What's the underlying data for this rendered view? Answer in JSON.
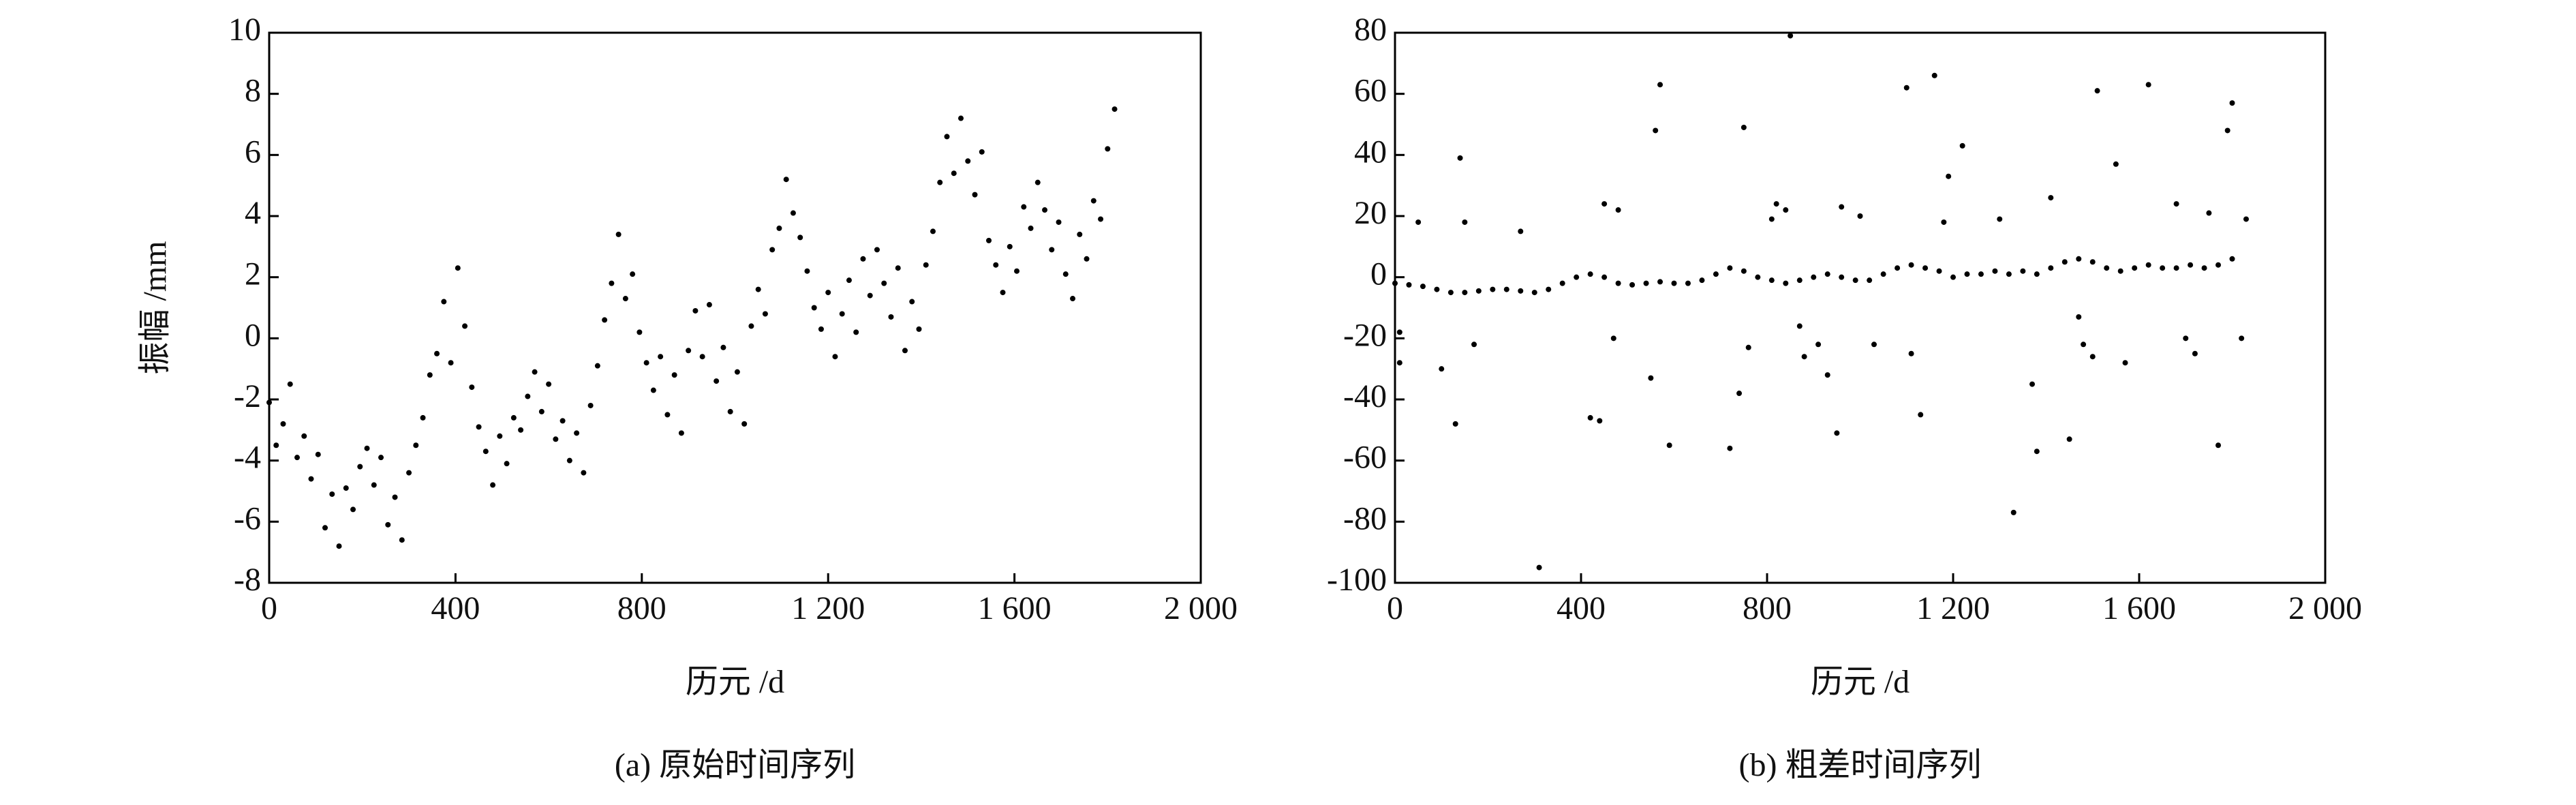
{
  "chart_data": [
    {
      "type": "scatter",
      "caption": "(a) 原始时间序列",
      "xlabel": "历元 /d",
      "ylabel": "振幅 /mm",
      "xlim": [
        0,
        2000
      ],
      "ylim": [
        -8,
        10
      ],
      "xticks": [
        0,
        400,
        800,
        {
          "value": 1200,
          "label": "1 200"
        },
        {
          "value": 1600,
          "label": "1 600"
        },
        {
          "value": 2000,
          "label": "2 000"
        }
      ],
      "yticks": [
        -8,
        -6,
        -4,
        -2,
        0,
        2,
        4,
        6,
        8,
        10
      ],
      "series": [
        {
          "color": "#000000",
          "x": [
            0,
            15,
            30,
            45,
            60,
            75,
            90,
            105,
            120,
            135,
            150,
            165,
            180,
            195,
            210,
            225,
            240,
            255,
            270,
            285,
            300,
            315,
            330,
            345,
            360,
            375,
            390,
            405,
            420,
            435,
            450,
            465,
            480,
            495,
            510,
            525,
            540,
            555,
            570,
            585,
            600,
            615,
            630,
            645,
            660,
            675,
            690,
            705,
            720,
            735,
            750,
            765,
            780,
            795,
            810,
            825,
            840,
            855,
            870,
            885,
            900,
            915,
            930,
            945,
            960,
            975,
            990,
            1005,
            1020,
            1035,
            1050,
            1065,
            1080,
            1095,
            1110,
            1125,
            1140,
            1155,
            1170,
            1185,
            1200,
            1215,
            1230,
            1245,
            1260,
            1275,
            1290,
            1305,
            1320,
            1335,
            1350,
            1365,
            1380,
            1395,
            1410,
            1425,
            1440,
            1455,
            1470,
            1485,
            1500,
            1515,
            1530,
            1545,
            1560,
            1575,
            1590,
            1605,
            1620,
            1635,
            1650,
            1665,
            1680,
            1695,
            1710,
            1725,
            1740,
            1755,
            1770,
            1785,
            1800,
            1815
          ],
          "values": [
            -2.1,
            -3.5,
            -2.8,
            -1.5,
            -3.9,
            -3.2,
            -4.6,
            -3.8,
            -6.2,
            -5.1,
            -6.8,
            -4.9,
            -5.6,
            -4.2,
            -3.6,
            -4.8,
            -3.9,
            -6.1,
            -5.2,
            -6.6,
            -4.4,
            -3.5,
            -2.6,
            -1.2,
            -0.5,
            1.2,
            -0.8,
            2.3,
            0.4,
            -1.6,
            -2.9,
            -3.7,
            -4.8,
            -3.2,
            -4.1,
            -2.6,
            -3.0,
            -1.9,
            -1.1,
            -2.4,
            -1.5,
            -3.3,
            -2.7,
            -4.0,
            -3.1,
            -4.4,
            -2.2,
            -0.9,
            0.6,
            1.8,
            3.4,
            1.3,
            2.1,
            0.2,
            -0.8,
            -1.7,
            -0.6,
            -2.5,
            -1.2,
            -3.1,
            -0.4,
            0.9,
            -0.6,
            1.1,
            -1.4,
            -0.3,
            -2.4,
            -1.1,
            -2.8,
            0.4,
            1.6,
            0.8,
            2.9,
            3.6,
            5.2,
            4.1,
            3.3,
            2.2,
            1.0,
            0.3,
            1.5,
            -0.6,
            0.8,
            1.9,
            0.2,
            2.6,
            1.4,
            2.9,
            1.8,
            0.7,
            2.3,
            -0.4,
            1.2,
            0.3,
            2.4,
            3.5,
            5.1,
            6.6,
            5.4,
            7.2,
            5.8,
            4.7,
            6.1,
            3.2,
            2.4,
            1.5,
            3.0,
            2.2,
            4.3,
            3.6,
            5.1,
            4.2,
            2.9,
            3.8,
            2.1,
            1.3,
            3.4,
            2.6,
            4.5,
            3.9,
            6.2,
            7.5
          ]
        }
      ]
    },
    {
      "type": "scatter",
      "caption": "(b) 粗差时间序列",
      "xlabel": "历元 /d",
      "xlim": [
        0,
        2000
      ],
      "ylim": [
        -100,
        80
      ],
      "xticks": [
        0,
        400,
        800,
        {
          "value": 1200,
          "label": "1 200"
        },
        {
          "value": 1600,
          "label": "1 600"
        },
        {
          "value": 2000,
          "label": "2 000"
        }
      ],
      "yticks": [
        -100,
        -80,
        -60,
        -40,
        -20,
        0,
        20,
        40,
        60,
        80
      ],
      "series": [
        {
          "color": "#000000",
          "x": [
            0,
            30,
            60,
            90,
            120,
            150,
            180,
            210,
            240,
            270,
            300,
            330,
            360,
            390,
            420,
            450,
            480,
            510,
            540,
            570,
            600,
            630,
            660,
            690,
            720,
            750,
            780,
            810,
            840,
            870,
            900,
            930,
            960,
            990,
            1020,
            1050,
            1080,
            1110,
            1140,
            1170,
            1200,
            1230,
            1260,
            1290,
            1320,
            1350,
            1380,
            1410,
            1440,
            1470,
            1500,
            1530,
            1560,
            1590,
            1620,
            1650,
            1680,
            1710,
            1740,
            1770,
            1800,
            10,
            10,
            50,
            100,
            130,
            140,
            150,
            170,
            270,
            310,
            420,
            440,
            450,
            470,
            480,
            550,
            560,
            570,
            590,
            720,
            740,
            750,
            760,
            810,
            820,
            840,
            850,
            870,
            880,
            910,
            930,
            950,
            960,
            1000,
            1030,
            1100,
            1110,
            1130,
            1160,
            1180,
            1190,
            1220,
            1300,
            1330,
            1370,
            1380,
            1410,
            1450,
            1470,
            1480,
            1500,
            1510,
            1550,
            1570,
            1620,
            1680,
            1700,
            1720,
            1750,
            1770,
            1790,
            1800,
            1820,
            1830
          ],
          "values": [
            -2,
            -2.5,
            -3,
            -4,
            -5,
            -5,
            -4.5,
            -4,
            -4,
            -4.5,
            -5,
            -4,
            -2,
            0,
            1,
            0,
            -2,
            -2.5,
            -2,
            -1.5,
            -2,
            -2,
            -1,
            1,
            3,
            2,
            0,
            -1,
            -2,
            -1,
            0,
            1,
            0,
            -1,
            -1,
            1,
            3,
            4,
            3,
            2,
            0,
            1,
            1,
            2,
            1,
            2,
            1,
            3,
            5,
            6,
            5,
            3,
            2,
            3,
            4,
            3,
            3,
            4,
            3,
            4,
            6,
            -18,
            -28,
            18,
            -30,
            -48,
            39,
            18,
            -22,
            15,
            -95,
            -46,
            -47,
            24,
            -20,
            22,
            -33,
            48,
            63,
            -55,
            -56,
            -38,
            49,
            -23,
            19,
            24,
            22,
            79,
            -16,
            -26,
            -22,
            -32,
            -51,
            23,
            20,
            -22,
            62,
            -25,
            -45,
            66,
            18,
            33,
            43,
            19,
            -77,
            -35,
            -57,
            26,
            -53,
            -13,
            -22,
            -26,
            61,
            37,
            -28,
            63,
            24,
            -20,
            -25,
            21,
            -55,
            48,
            57,
            -20,
            19
          ]
        }
      ]
    }
  ]
}
